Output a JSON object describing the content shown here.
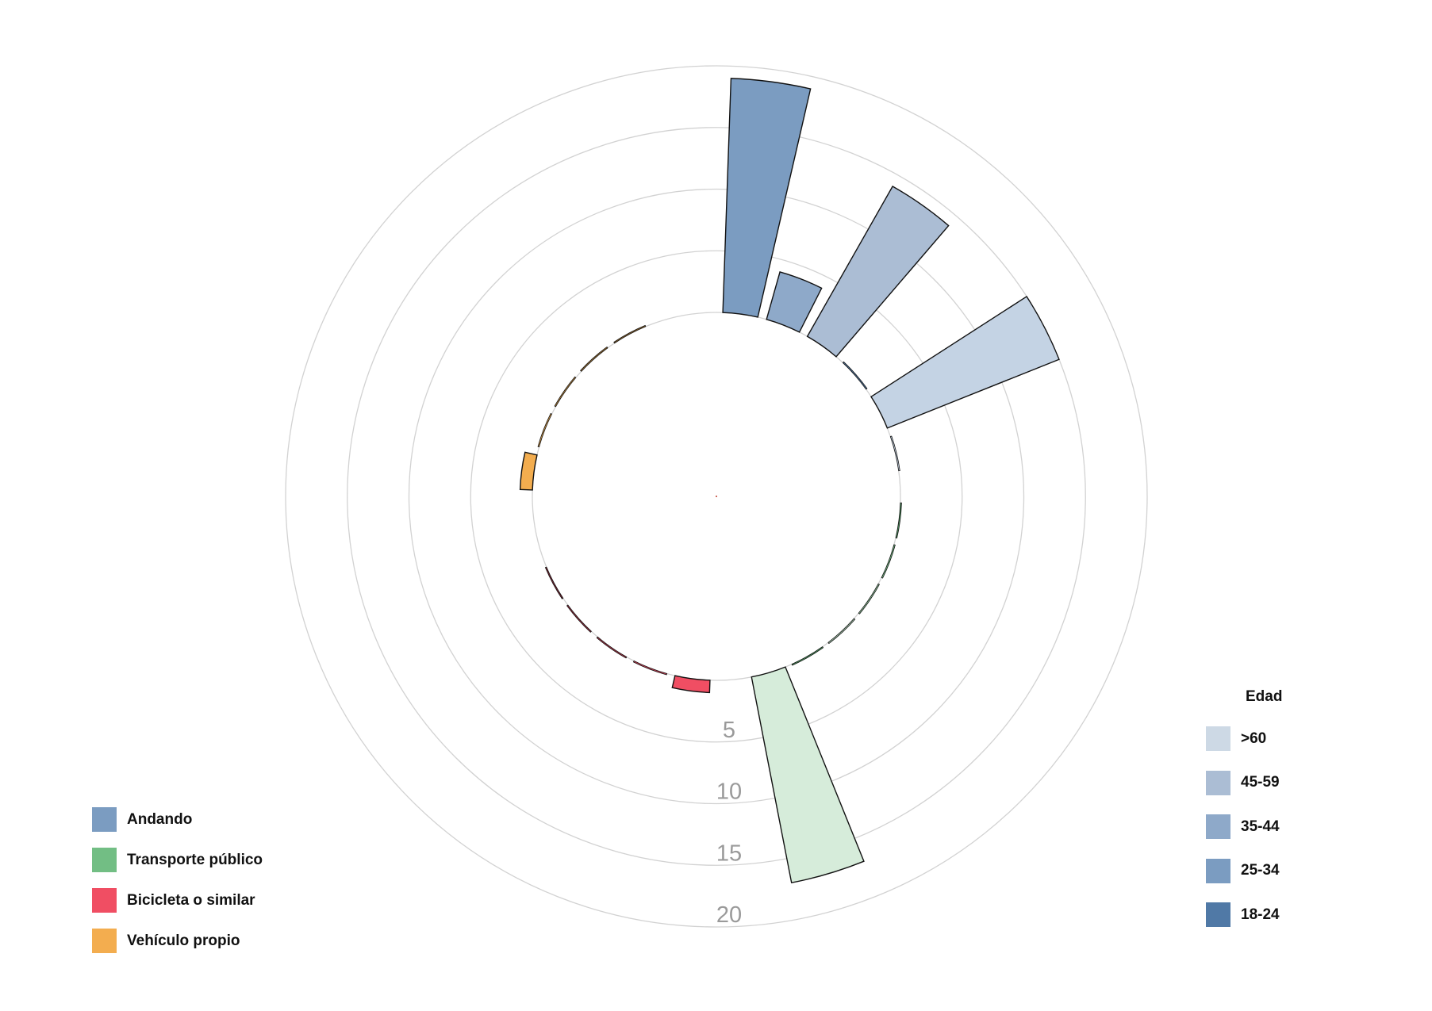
{
  "chart_data": {
    "type": "radial-bar",
    "title": "",
    "radial_ticks": [
      5,
      10,
      15,
      20
    ],
    "radial_range": [
      0,
      20
    ],
    "grid": true,
    "categories": [
      "Andando",
      "Transporte público",
      "Bicicleta o similar",
      "Vehículo propio"
    ],
    "series": [
      {
        "name": "Andando",
        "color": "#7b9cc1",
        "values": [
          {
            "age": "25-34",
            "value": 19
          },
          {
            "age": "35-44",
            "value": 4
          },
          {
            "age": "45-59",
            "value": 14
          },
          {
            "age": "18-24",
            "value": 0.1
          },
          {
            "age": ">60",
            "value": 15
          },
          {
            "age": ">60",
            "value": 0.1
          }
        ]
      },
      {
        "name": "Transporte público",
        "color": "#72be84",
        "values": [
          {
            "age": "18-24",
            "value": 0.1
          },
          {
            "age": "25-34",
            "value": 0.1
          },
          {
            "age": "35-44",
            "value": 0.1
          },
          {
            "age": "45-59",
            "value": 0.1
          },
          {
            "age": "18-24",
            "value": 0.1
          },
          {
            "age": ">60",
            "value": 17
          }
        ]
      },
      {
        "name": "Bicicleta o similar",
        "color": "#f04e63",
        "values": [
          {
            "age": "18-24",
            "value": 1
          },
          {
            "age": "25-34",
            "value": 0.1
          },
          {
            "age": "35-44",
            "value": 0.1
          },
          {
            "age": "45-59",
            "value": 0.1
          },
          {
            "age": ">60",
            "value": 0.1
          }
        ]
      },
      {
        "name": "Vehículo propio",
        "color": "#f3ad4f",
        "values": [
          {
            "age": "18-24",
            "value": 1
          },
          {
            "age": "25-34",
            "value": 0.1
          },
          {
            "age": "35-44",
            "value": 0.1
          },
          {
            "age": "45-59",
            "value": 0.1
          },
          {
            "age": ">60",
            "value": 0.1
          }
        ]
      }
    ],
    "legend_mode": {
      "placement": "bottom-left",
      "items": [
        {
          "label": "Andando",
          "color": "#7b9cc1"
        },
        {
          "label": "Transporte público",
          "color": "#72be84"
        },
        {
          "label": "Bicicleta o similar",
          "color": "#f04e63"
        },
        {
          "label": "Vehículo propio",
          "color": "#f3ad4f"
        }
      ]
    },
    "legend_age": {
      "placement": "bottom-right",
      "title": "Edad",
      "items": [
        {
          "label": ">60",
          "color": "#cdd9e5"
        },
        {
          "label": "45-59",
          "color": "#abbdd4"
        },
        {
          "label": "35-44",
          "color": "#8ea9c9"
        },
        {
          "label": "25-34",
          "color": "#7b9cc1"
        },
        {
          "label": "18-24",
          "color": "#5079a6"
        }
      ]
    },
    "age_shades": {
      "Andando": {
        "18-24": "#5079a6",
        "25-34": "#7b9cc1",
        "35-44": "#8ea9c9",
        "45-59": "#abbdd4",
        ">60": "#c4d3e4"
      },
      "Transporte público": {
        "18-24": "#4e9c62",
        "25-34": "#72be84",
        "35-44": "#96cfa2",
        "45-59": "#b5ddbe",
        ">60": "#d6ecda"
      },
      "Bicicleta o similar": {
        "18-24": "#f04e63",
        "25-34": "#d23f55",
        "35-44": "#b53347",
        "45-59": "#982a3b",
        ">60": "#7b2230"
      },
      "Vehículo propio": {
        "18-24": "#f3ad4f",
        "25-34": "#d89a44",
        "35-44": "#bb853a",
        "45-59": "#9f7131",
        ">60": "#835d28"
      }
    }
  }
}
